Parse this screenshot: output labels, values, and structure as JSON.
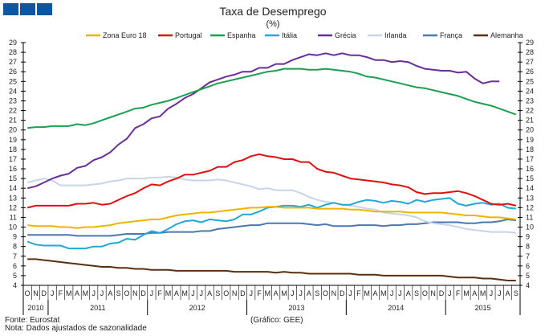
{
  "chart_data": {
    "type": "line",
    "title": "Taxa de Desemprego",
    "subtitle": "(%)",
    "xlabel": "",
    "ylabel": "",
    "ylim": [
      4,
      29
    ],
    "yticks": [
      4,
      5,
      6,
      7,
      8,
      9,
      10,
      11,
      12,
      13,
      14,
      15,
      16,
      17,
      18,
      19,
      20,
      21,
      22,
      23,
      24,
      25,
      26,
      27,
      28,
      29
    ],
    "grid": false,
    "legend_position": "top",
    "month_labels": [
      "O",
      "N",
      "D",
      "J",
      "F",
      "M",
      "A",
      "M",
      "J",
      "J",
      "A",
      "S",
      "O",
      "N",
      "D",
      "J",
      "F",
      "M",
      "A",
      "M",
      "J",
      "J",
      "A",
      "S",
      "O",
      "N",
      "D",
      "J",
      "F",
      "M",
      "A",
      "M",
      "J",
      "J",
      "A",
      "S",
      "O",
      "N",
      "D",
      "J",
      "F",
      "M",
      "A",
      "M",
      "J",
      "J",
      "A",
      "S",
      "O",
      "N",
      "D",
      "J",
      "F",
      "M",
      "A",
      "M",
      "J",
      "J",
      "A",
      "S"
    ],
    "years": [
      {
        "label": "2010",
        "months": 3
      },
      {
        "label": "2011",
        "months": 12
      },
      {
        "label": "2012",
        "months": 12
      },
      {
        "label": "2013",
        "months": 12
      },
      {
        "label": "2014",
        "months": 12
      },
      {
        "label": "2015",
        "months": 9
      }
    ],
    "series": [
      {
        "name": "Zona Euro 18",
        "color": "#f0b400",
        "values": [
          10.2,
          10.1,
          10.1,
          10.1,
          10.0,
          10.0,
          9.9,
          10.0,
          10.0,
          10.1,
          10.2,
          10.4,
          10.5,
          10.6,
          10.7,
          10.8,
          10.8,
          11.0,
          11.2,
          11.3,
          11.4,
          11.5,
          11.5,
          11.6,
          11.7,
          11.8,
          11.9,
          12.0,
          12.0,
          12.1,
          12.1,
          12.0,
          12.0,
          12.0,
          12.0,
          11.9,
          11.9,
          11.9,
          11.9,
          11.8,
          11.8,
          11.7,
          11.6,
          11.6,
          11.6,
          11.6,
          11.5,
          11.5,
          11.5,
          11.5,
          11.5,
          11.4,
          11.3,
          11.2,
          11.2,
          11.1,
          11.0,
          11.0,
          10.9,
          10.8
        ]
      },
      {
        "name": "Portugal",
        "color": "#e01010",
        "values": [
          12.0,
          12.2,
          12.2,
          12.2,
          12.2,
          12.2,
          12.4,
          12.4,
          12.5,
          12.3,
          12.4,
          12.8,
          13.2,
          13.5,
          14.0,
          14.4,
          14.3,
          14.7,
          15.0,
          15.4,
          15.4,
          15.6,
          15.8,
          16.2,
          16.2,
          16.7,
          16.9,
          17.3,
          17.5,
          17.3,
          17.2,
          17.0,
          17.0,
          16.7,
          16.7,
          16.0,
          15.7,
          15.6,
          15.3,
          15.0,
          14.9,
          14.8,
          14.7,
          14.6,
          14.4,
          14.3,
          14.1,
          13.6,
          13.4,
          13.5,
          13.5,
          13.6,
          13.7,
          13.5,
          13.2,
          12.8,
          12.4,
          12.3,
          12.4,
          12.2
        ]
      },
      {
        "name": "Espanha",
        "color": "#1aa050",
        "values": [
          20.2,
          20.3,
          20.3,
          20.4,
          20.4,
          20.4,
          20.6,
          20.5,
          20.7,
          21.0,
          21.3,
          21.6,
          21.9,
          22.2,
          22.3,
          22.6,
          22.8,
          23.0,
          23.3,
          23.6,
          23.9,
          24.2,
          24.5,
          24.8,
          25.0,
          25.2,
          25.4,
          25.6,
          25.8,
          26.0,
          26.1,
          26.3,
          26.3,
          26.3,
          26.2,
          26.2,
          26.3,
          26.2,
          26.1,
          26.0,
          25.8,
          25.5,
          25.4,
          25.2,
          25.0,
          24.8,
          24.6,
          24.4,
          24.3,
          24.1,
          23.9,
          23.7,
          23.5,
          23.2,
          22.9,
          22.7,
          22.5,
          22.2,
          21.9,
          21.6
        ]
      },
      {
        "name": "Itália",
        "color": "#22a8d8",
        "values": [
          8.5,
          8.2,
          8.1,
          8.1,
          8.1,
          7.8,
          7.8,
          7.8,
          8.0,
          8.0,
          8.3,
          8.4,
          8.8,
          8.7,
          9.2,
          9.6,
          9.4,
          9.8,
          10.3,
          10.6,
          10.7,
          10.5,
          10.8,
          10.7,
          10.6,
          10.8,
          11.3,
          11.3,
          11.6,
          12.0,
          12.1,
          12.2,
          12.2,
          12.1,
          12.3,
          12.0,
          12.3,
          12.5,
          12.3,
          12.3,
          12.6,
          12.8,
          12.7,
          12.5,
          12.7,
          12.6,
          12.4,
          12.8,
          12.6,
          12.8,
          12.9,
          13.0,
          12.4,
          12.2,
          12.4,
          12.5,
          12.3,
          12.4,
          12.0,
          11.9
        ]
      },
      {
        "name": "Grécia",
        "color": "#6a2e9a",
        "values": [
          14.0,
          14.2,
          14.6,
          15.0,
          15.3,
          15.5,
          16.1,
          16.3,
          16.9,
          17.2,
          17.7,
          18.5,
          19.1,
          20.2,
          20.6,
          21.2,
          21.4,
          22.2,
          22.7,
          23.3,
          23.7,
          24.3,
          24.9,
          25.2,
          25.5,
          25.7,
          26.0,
          26.0,
          26.4,
          26.4,
          26.8,
          26.8,
          27.2,
          27.5,
          27.8,
          27.7,
          27.9,
          27.7,
          27.9,
          27.7,
          27.7,
          27.5,
          27.2,
          27.2,
          27.0,
          27.1,
          27.0,
          26.6,
          26.3,
          26.2,
          26.1,
          26.1,
          25.9,
          26.0,
          25.3,
          24.8,
          25.0,
          25.0,
          null,
          null
        ]
      },
      {
        "name": "Irlanda",
        "color": "#c8d4e8",
        "values": [
          14.6,
          14.8,
          15.0,
          14.8,
          14.3,
          14.3,
          14.3,
          14.3,
          14.4,
          14.5,
          14.7,
          14.8,
          15.0,
          15.0,
          15.0,
          15.1,
          15.1,
          15.2,
          15.1,
          14.9,
          14.8,
          14.8,
          14.8,
          14.9,
          14.8,
          14.6,
          14.4,
          14.2,
          13.9,
          14.0,
          13.8,
          13.8,
          13.8,
          13.5,
          13.1,
          12.8,
          12.6,
          12.5,
          12.3,
          12.2,
          12.1,
          11.9,
          11.8,
          11.5,
          11.4,
          11.3,
          11.2,
          11.0,
          10.6,
          10.4,
          10.3,
          10.2,
          10.0,
          9.8,
          9.7,
          9.6,
          9.5,
          9.5,
          9.5,
          9.4
        ]
      },
      {
        "name": "França",
        "color": "#4a78b0",
        "values": [
          9.2,
          9.2,
          9.2,
          9.2,
          9.2,
          9.2,
          9.1,
          9.1,
          9.1,
          9.1,
          9.1,
          9.2,
          9.3,
          9.3,
          9.3,
          9.4,
          9.4,
          9.5,
          9.5,
          9.5,
          9.5,
          9.6,
          9.6,
          9.8,
          9.9,
          10.0,
          10.1,
          10.2,
          10.2,
          10.4,
          10.4,
          10.4,
          10.4,
          10.4,
          10.3,
          10.2,
          10.3,
          10.1,
          10.1,
          10.1,
          10.2,
          10.2,
          10.2,
          10.1,
          10.2,
          10.2,
          10.3,
          10.3,
          10.4,
          10.5,
          10.5,
          10.5,
          10.5,
          10.4,
          10.4,
          10.5,
          10.5,
          10.6,
          10.8,
          10.7
        ]
      },
      {
        "name": "Alemanha",
        "color": "#5a3010",
        "values": [
          6.7,
          6.7,
          6.6,
          6.5,
          6.4,
          6.3,
          6.2,
          6.1,
          6.0,
          5.9,
          5.9,
          5.8,
          5.8,
          5.7,
          5.7,
          5.6,
          5.6,
          5.6,
          5.5,
          5.5,
          5.5,
          5.5,
          5.5,
          5.5,
          5.5,
          5.4,
          5.4,
          5.4,
          5.4,
          5.4,
          5.3,
          5.4,
          5.3,
          5.3,
          5.2,
          5.2,
          5.2,
          5.2,
          5.2,
          5.2,
          5.1,
          5.1,
          5.1,
          5.0,
          5.0,
          5.0,
          5.0,
          5.0,
          5.0,
          5.0,
          5.0,
          4.9,
          4.8,
          4.8,
          4.8,
          4.7,
          4.7,
          4.6,
          4.5,
          4.5
        ]
      }
    ]
  },
  "footer": {
    "source": "Fonte: Eurostat",
    "note": "Nota: Dados ajustados de sazonalidade",
    "credit": "(Gráfico: GEE)"
  }
}
